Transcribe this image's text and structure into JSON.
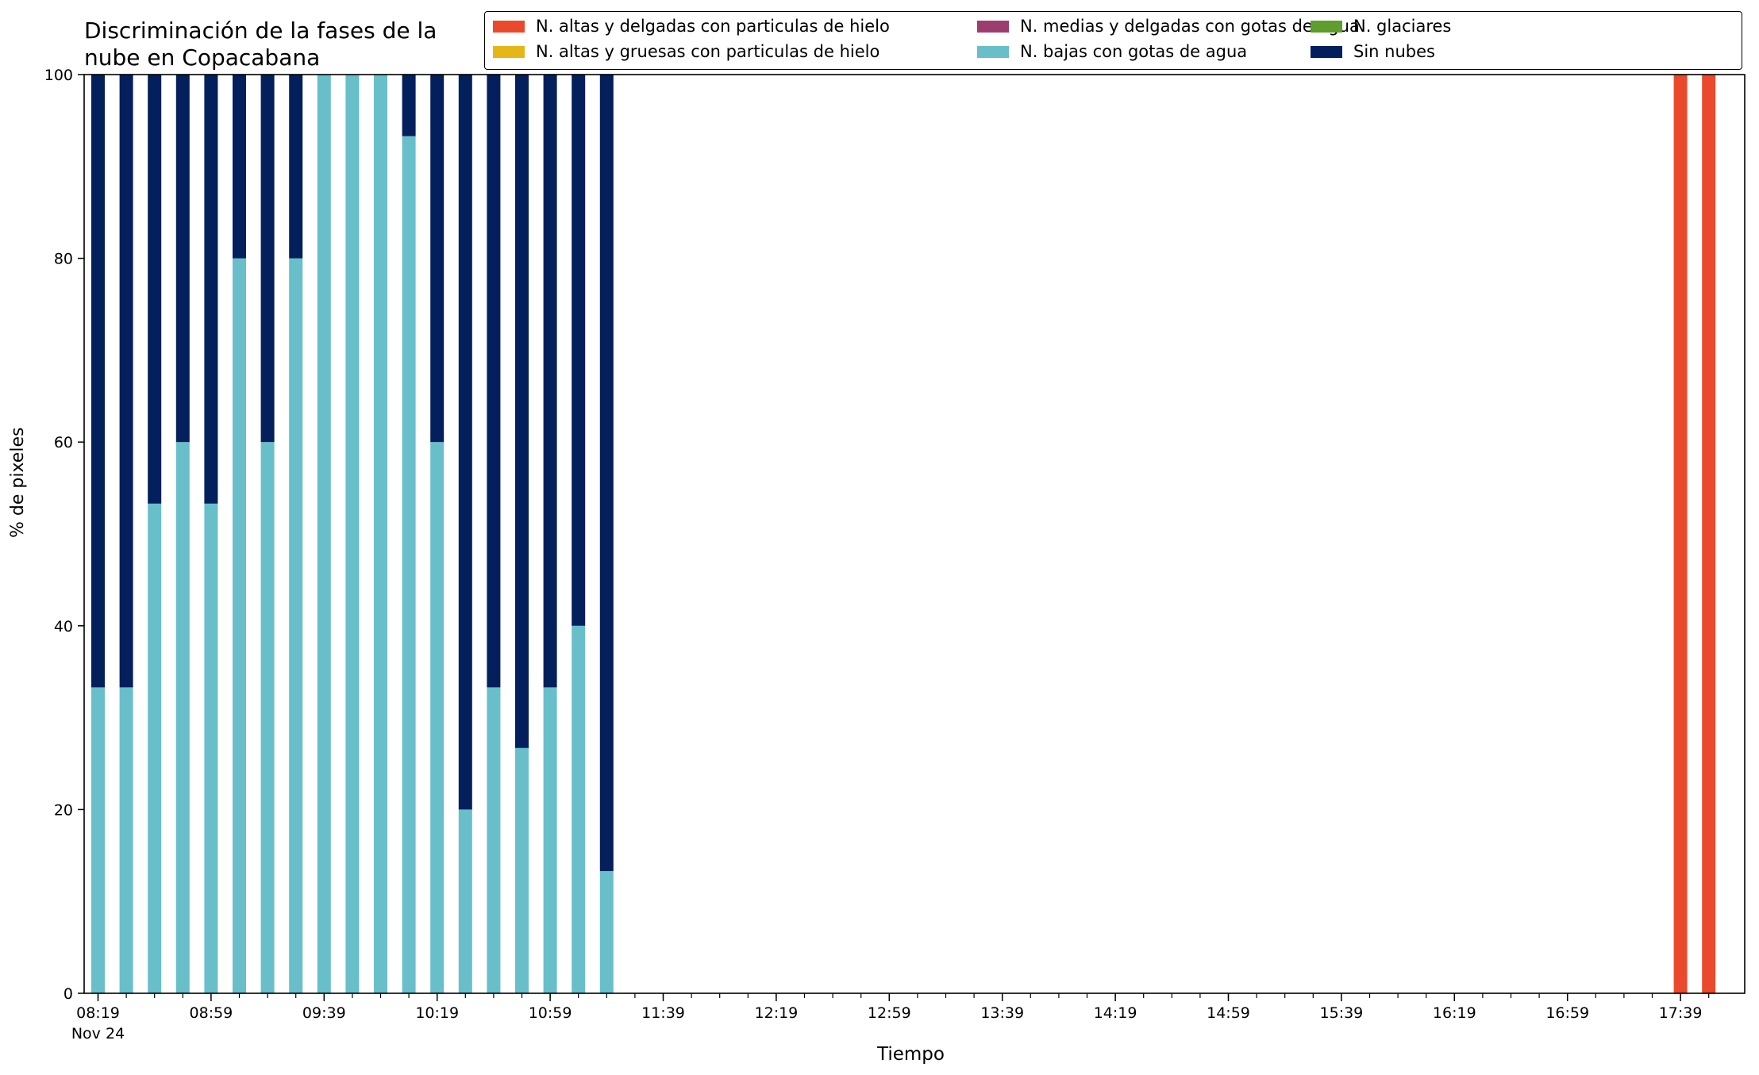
{
  "chart_data": {
    "type": "bar",
    "stacked": true,
    "title": "Discriminación de la fases de la nube en Copacabana",
    "title_lines": [
      "Discriminación de la fases de la",
      "nube en Copacabana"
    ],
    "xlabel": "Tiempo",
    "ylabel": "% de pixeles",
    "ylim": [
      0,
      100
    ],
    "yticks": [
      0,
      20,
      40,
      60,
      80,
      100
    ],
    "x_interval_minutes": 10,
    "x_start": "08:19",
    "x_end": "17:49",
    "xtick_labels": [
      "08:19",
      "08:59",
      "09:39",
      "10:19",
      "10:59",
      "11:39",
      "12:19",
      "12:59",
      "13:39",
      "14:19",
      "14:59",
      "15:39",
      "16:19",
      "16:59",
      "17:39"
    ],
    "date_label": "Nov 24",
    "grid": false,
    "legend_position": "top-right",
    "legend": [
      {
        "name": "N. altas y delgadas con particulas de hielo",
        "color": "#ea4a2b"
      },
      {
        "name": "N. altas y gruesas con particulas de hielo",
        "color": "#e5b617"
      },
      {
        "name": "N. medias y delgadas con gotas de agua",
        "color": "#9d3d6f"
      },
      {
        "name": "N. bajas con gotas de agua",
        "color": "#68bfca"
      },
      {
        "name": "N. glaciares",
        "color": "#5f9d2c"
      },
      {
        "name": "Sin nubes",
        "color": "#031f5c"
      }
    ],
    "categories": [
      "08:19",
      "08:29",
      "08:39",
      "08:49",
      "08:59",
      "09:09",
      "09:19",
      "09:29",
      "09:39",
      "09:49",
      "09:59",
      "10:09",
      "10:19",
      "10:29",
      "10:39",
      "10:49",
      "10:59",
      "11:09",
      "11:19",
      "17:39",
      "17:49"
    ],
    "series": [
      {
        "name": "N. altas y delgadas con particulas de hielo",
        "color": "#ea4a2b",
        "values": [
          0,
          0,
          0,
          0,
          0,
          0,
          0,
          0,
          0,
          0,
          0,
          0,
          0,
          0,
          0,
          0,
          0,
          0,
          0,
          100,
          100
        ]
      },
      {
        "name": "N. bajas con gotas de agua",
        "color": "#68bfca",
        "values": [
          33.3,
          33.3,
          53.3,
          60,
          53.3,
          80,
          60,
          80,
          100,
          100,
          100,
          93.3,
          60,
          20,
          33.3,
          26.7,
          33.3,
          40,
          13.3,
          0,
          0
        ]
      },
      {
        "name": "Sin nubes",
        "color": "#031f5c",
        "values": [
          66.7,
          66.7,
          46.7,
          40,
          46.7,
          20,
          40,
          20,
          0,
          0,
          0,
          6.7,
          40,
          80,
          66.7,
          73.3,
          66.7,
          60,
          86.7,
          0,
          0
        ]
      }
    ]
  }
}
